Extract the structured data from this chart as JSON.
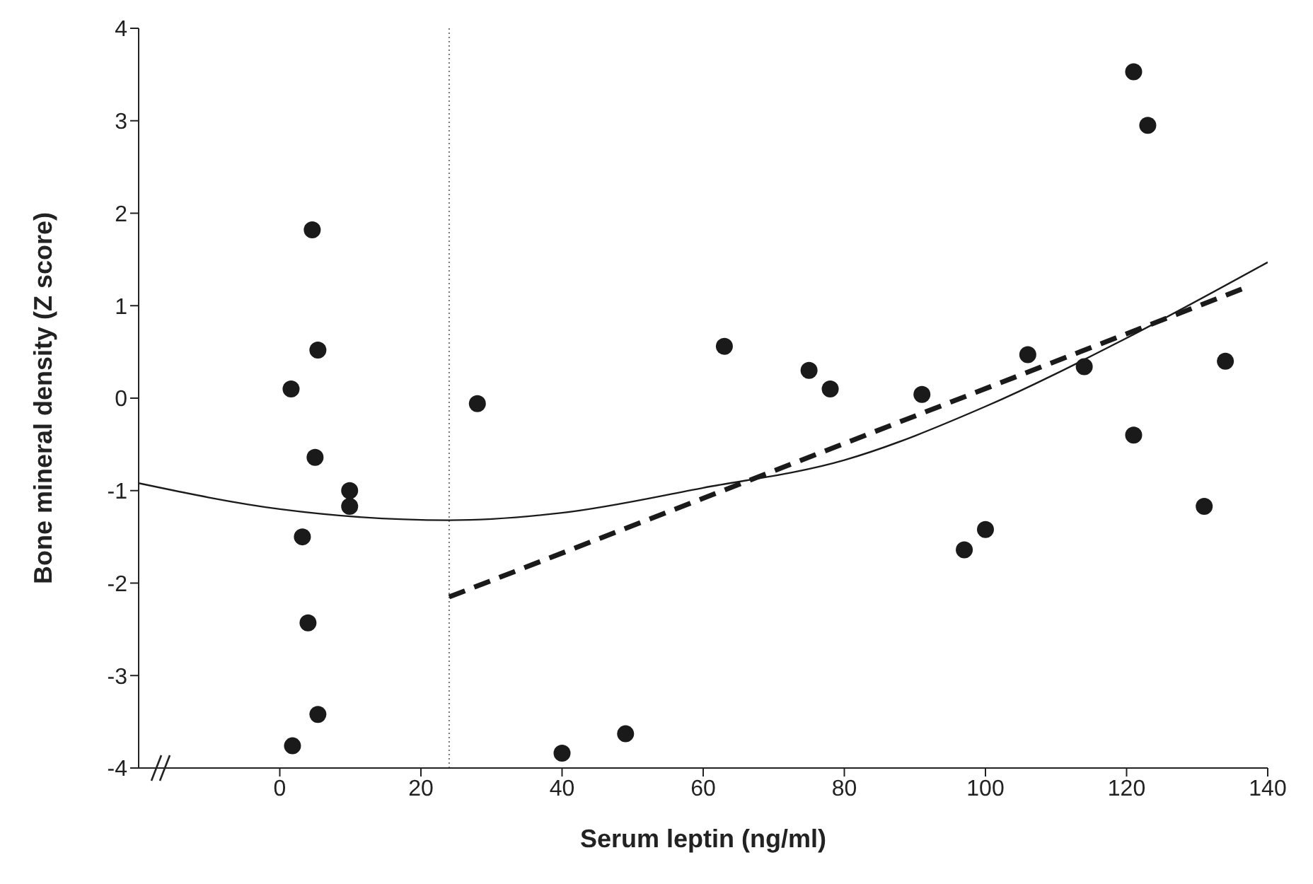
{
  "chart_data": {
    "type": "scatter",
    "xlabel": "Serum leptin (ng/ml)",
    "ylabel": "Bone mineral density (Z score)",
    "xlim": [
      -20,
      140
    ],
    "xticks": [
      0,
      20,
      40,
      60,
      80,
      100,
      120,
      140
    ],
    "ylim": [
      -4,
      4
    ],
    "yticks": [
      -4,
      -3,
      -2,
      -1,
      0,
      1,
      2,
      3,
      4
    ],
    "marker": "circle",
    "series": [
      {
        "color": "#1a1a1a",
        "x": [
          1.8,
          1.6,
          3.2,
          4.0,
          4.6,
          5.4,
          5.0,
          5.4,
          9.9,
          9.9,
          28,
          40,
          49,
          63,
          75,
          78,
          91,
          97,
          100,
          106,
          114,
          121,
          123,
          121,
          131,
          134
        ],
        "values": [
          -3.76,
          0.1,
          -1.5,
          -2.43,
          1.82,
          0.52,
          -0.64,
          -3.42,
          -1.0,
          -1.17,
          -0.06,
          -3.84,
          -3.63,
          0.56,
          0.3,
          0.1,
          0.04,
          -1.64,
          -1.42,
          0.47,
          0.34,
          3.53,
          2.95,
          -0.4,
          -1.17,
          0.4
        ]
      },
      {
        "type": "line",
        "color": "#1a1a1a",
        "line_style": "solid",
        "marker": "none",
        "x": [
          -20,
          0,
          24,
          40,
          60,
          80,
          100,
          120,
          140
        ],
        "values": [
          -0.92,
          -1.2,
          -1.32,
          -1.24,
          -0.97,
          -0.67,
          -0.09,
          0.65,
          1.47
        ]
      },
      {
        "type": "line",
        "color": "#1a1a1a",
        "line_style": "dashed",
        "marker": "none",
        "x": [
          24,
          137
        ],
        "values": [
          -2.15,
          1.2
        ]
      }
    ],
    "ref_lines": [
      {
        "axis": "x",
        "value": 24,
        "color": "#777777",
        "line_style": "dotted"
      }
    ]
  }
}
